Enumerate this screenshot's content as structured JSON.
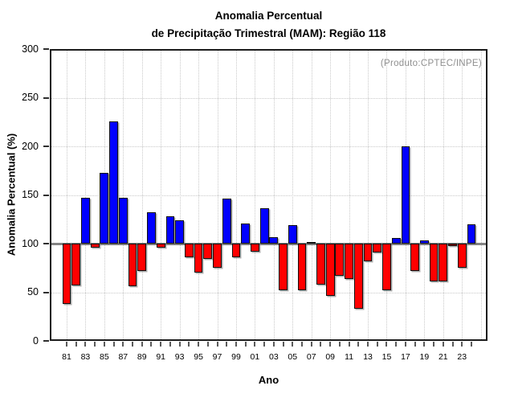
{
  "title": {
    "line1": "Anomalia Percentual",
    "line2": "de Precipitação Trimestral (MAM): Região 118"
  },
  "annotation": "(Produto:CPTEC/INPE)",
  "chart_data": {
    "type": "bar",
    "title": "Anomalia Percentual de Precipitação Trimestral (MAM): Região 118",
    "xlabel": "Ano",
    "ylabel": "Anomalia Percentual (%)",
    "ylim": [
      0,
      300
    ],
    "yticks": [
      0,
      50,
      100,
      150,
      200,
      250,
      300
    ],
    "baseline": 100,
    "grid": "dotted",
    "legend": "none",
    "years": [
      "81",
      "82",
      "83",
      "84",
      "85",
      "86",
      "87",
      "88",
      "89",
      "90",
      "91",
      "92",
      "93",
      "94",
      "95",
      "96",
      "97",
      "98",
      "99",
      "00",
      "01",
      "02",
      "03",
      "04",
      "05",
      "06",
      "07",
      "08",
      "09",
      "10",
      "11",
      "12",
      "13",
      "14",
      "15",
      "16",
      "17",
      "18",
      "19",
      "20",
      "21",
      "22",
      "23",
      "24"
    ],
    "x_tick_labels": [
      "81",
      "83",
      "85",
      "87",
      "89",
      "91",
      "93",
      "95",
      "97",
      "99",
      "01",
      "03",
      "05",
      "07",
      "09",
      "11",
      "13",
      "15",
      "17",
      "19",
      "21",
      "23"
    ],
    "values": [
      38,
      57,
      147,
      96,
      173,
      226,
      147,
      56,
      72,
      132,
      96,
      128,
      124,
      86,
      70,
      84,
      75,
      146,
      86,
      121,
      92,
      136,
      107,
      52,
      119,
      52,
      102,
      58,
      46,
      67,
      64,
      33,
      82,
      91,
      52,
      106,
      200,
      72,
      103,
      61,
      61,
      98,
      75,
      120
    ],
    "colors": {
      "above_baseline": "#0000ff",
      "below_baseline": "#ff0000",
      "baseline_line": "#838383",
      "gridline": "#c9c9c9",
      "bar_outline": "#101010",
      "annotation_text": "#8f8f8f"
    },
    "special_colors": {
      "41": "#8b0000"
    }
  }
}
